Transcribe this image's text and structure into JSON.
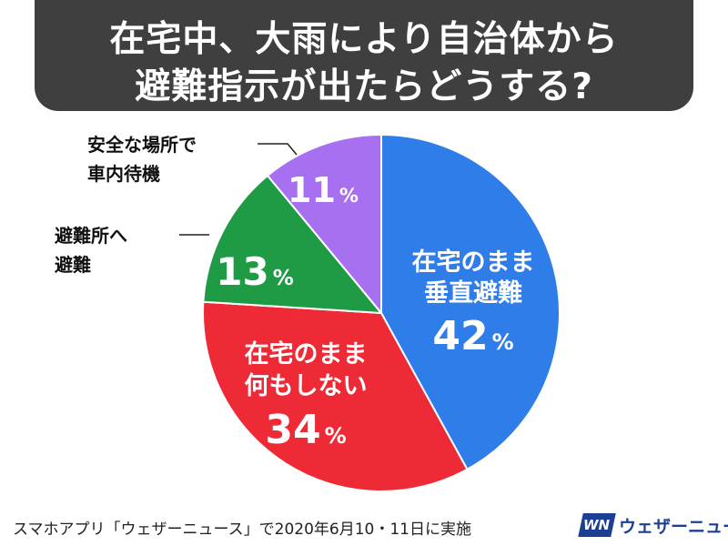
{
  "title": {
    "line1": "在宅中、大雨により自治体から",
    "line2": "避難指示が出たらどうする?"
  },
  "chart_data": {
    "type": "pie",
    "start": "12 o'clock, clockwise",
    "slices": [
      {
        "label_lines": [
          "在宅のまま",
          "垂直避難"
        ],
        "value": 42,
        "color": "#2f7de8"
      },
      {
        "label_lines": [
          "在宅のまま",
          "何もしない"
        ],
        "value": 34,
        "color": "#ee2a36"
      },
      {
        "label_lines": [
          "避難所へ",
          "避難"
        ],
        "value": 13,
        "color": "#1f9b45"
      },
      {
        "label_lines": [
          "安全な場所で",
          "車内待機"
        ],
        "value": 11,
        "color": "#a770f0"
      }
    ],
    "value_suffix": "%"
  },
  "footer": {
    "note": "スマホアプリ「ウェザーニュース」で2020年6月10・11日に実施"
  },
  "brand": {
    "logo_text": "WN",
    "name": "ウェザーニュース"
  }
}
